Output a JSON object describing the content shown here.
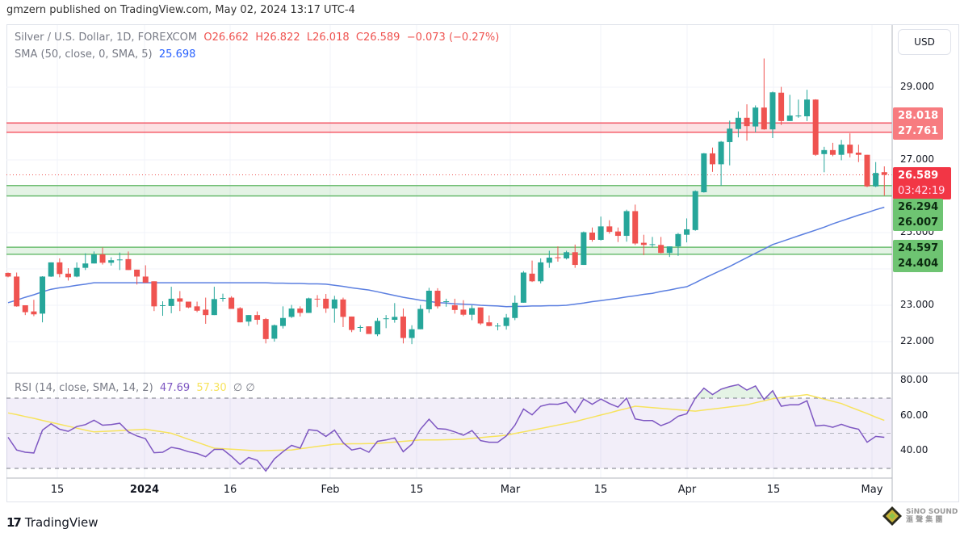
{
  "publisher": "gmzern published on TradingView.com, May 02, 2024 13:17 UTC-4",
  "legend": {
    "symbol": "Silver / U.S. Dollar, 1D, FOREXCOM",
    "open": "O26.662",
    "high": "H26.822",
    "low": "L26.018",
    "close": "C26.589",
    "change": "−0.073 (−0.27%)",
    "sma_title": "SMA (50, close, 0, SMA, 5)",
    "sma_value": "25.698",
    "rsi_title": "RSI (14, close, SMA, 14, 2)",
    "rsi_value": "47.69",
    "rsi_sma_value": "57.30",
    "rsi_extra": "∅ ∅"
  },
  "currency_button": "USD",
  "price_axis": {
    "ticks": [
      "29.000",
      "27.000",
      "25.000",
      "23.000",
      "22.000"
    ],
    "tags": {
      "resistance_top": "28.018",
      "resistance_bottom": "27.761",
      "last_price": "26.589",
      "countdown": "03:42:19",
      "support1_top": "26.294",
      "support1_bottom": "26.007",
      "support2_top": "24.597",
      "support2_bottom": "24.404"
    }
  },
  "rsi_axis": {
    "ticks": [
      "80.00",
      "60.00",
      "40.00"
    ]
  },
  "time_axis": {
    "ticks": [
      "15",
      "2024",
      "16",
      "Feb",
      "15",
      "Mar",
      "15",
      "Apr",
      "15",
      "May"
    ]
  },
  "footer": {
    "brand": "TradingView",
    "watermark": "SINO SOUND"
  },
  "colors": {
    "up": "#26a69a",
    "down": "#ef5350",
    "sma": "#5b7fe0",
    "rsi": "#7e57c2",
    "rsi_sma": "#f7e35d",
    "resistance_zone": "#f23645",
    "support_zone": "#4caf50"
  },
  "chart_data": {
    "type": "candlestick",
    "symbol": "Silver / U.S. Dollar",
    "interval": "1D",
    "ylim": [
      21.6,
      30.2
    ],
    "zones": [
      {
        "type": "resistance",
        "top": 28.018,
        "bottom": 27.761
      },
      {
        "type": "support",
        "top": 26.294,
        "bottom": 26.007
      },
      {
        "type": "support",
        "top": 24.597,
        "bottom": 24.404
      }
    ],
    "last_price": 26.589,
    "candles_ohlc": [
      [
        23.89,
        23.9,
        23.77,
        23.79
      ],
      [
        23.79,
        23.9,
        22.96,
        22.97
      ],
      [
        23.0,
        23.0,
        22.73,
        22.81
      ],
      [
        22.83,
        23.15,
        22.7,
        22.75
      ],
      [
        22.77,
        23.8,
        22.53,
        23.79
      ],
      [
        23.79,
        24.18,
        23.78,
        24.18
      ],
      [
        24.18,
        24.29,
        23.77,
        23.86
      ],
      [
        23.87,
        24.02,
        23.68,
        23.77
      ],
      [
        23.79,
        24.18,
        23.77,
        24.03
      ],
      [
        24.03,
        24.43,
        23.97,
        24.15
      ],
      [
        24.15,
        24.48,
        24.15,
        24.4
      ],
      [
        24.4,
        24.59,
        24.12,
        24.17
      ],
      [
        24.17,
        24.32,
        24.09,
        24.24
      ],
      [
        24.24,
        24.45,
        23.97,
        24.26
      ],
      [
        24.27,
        24.48,
        23.97,
        23.97
      ],
      [
        23.98,
        23.98,
        23.57,
        23.79
      ],
      [
        23.79,
        24.1,
        23.62,
        23.62
      ],
      [
        23.66,
        23.66,
        22.84,
        22.97
      ],
      [
        22.99,
        23.11,
        22.71,
        23.0
      ],
      [
        22.98,
        23.51,
        22.78,
        23.18
      ],
      [
        23.19,
        23.39,
        22.84,
        23.1
      ],
      [
        23.1,
        23.1,
        22.92,
        22.94
      ],
      [
        22.97,
        23.1,
        22.81,
        22.85
      ],
      [
        22.88,
        23.21,
        22.49,
        22.73
      ],
      [
        22.73,
        23.51,
        22.73,
        23.17
      ],
      [
        23.19,
        23.32,
        23.1,
        23.2
      ],
      [
        23.21,
        23.25,
        22.9,
        22.9
      ],
      [
        22.92,
        22.95,
        22.53,
        22.53
      ],
      [
        22.55,
        22.73,
        22.43,
        22.73
      ],
      [
        22.73,
        22.83,
        22.47,
        22.6
      ],
      [
        22.62,
        22.65,
        21.95,
        22.07
      ],
      [
        22.08,
        22.47,
        22.0,
        22.45
      ],
      [
        22.43,
        22.97,
        22.36,
        22.65
      ],
      [
        22.68,
        23.01,
        22.65,
        22.91
      ],
      [
        22.91,
        22.97,
        22.69,
        22.79
      ],
      [
        22.79,
        23.21,
        22.79,
        23.19
      ],
      [
        23.18,
        23.28,
        22.95,
        23.17
      ],
      [
        23.18,
        23.31,
        22.79,
        22.91
      ],
      [
        22.91,
        23.26,
        22.52,
        23.16
      ],
      [
        23.16,
        23.21,
        22.4,
        22.68
      ],
      [
        22.69,
        22.69,
        22.26,
        22.32
      ],
      [
        22.38,
        22.45,
        22.27,
        22.4
      ],
      [
        22.42,
        22.42,
        22.21,
        22.21
      ],
      [
        22.2,
        22.65,
        22.15,
        22.57
      ],
      [
        22.63,
        22.73,
        22.37,
        22.64
      ],
      [
        22.6,
        23.06,
        22.52,
        22.68
      ],
      [
        22.69,
        22.91,
        21.95,
        22.1
      ],
      [
        22.1,
        22.45,
        21.93,
        22.34
      ],
      [
        22.34,
        23.01,
        22.34,
        22.9
      ],
      [
        22.89,
        23.48,
        22.79,
        23.4
      ],
      [
        23.4,
        23.47,
        22.91,
        22.97
      ],
      [
        23.1,
        23.18,
        22.96,
        23.11
      ],
      [
        23.0,
        23.18,
        22.77,
        22.87
      ],
      [
        22.88,
        23.14,
        22.7,
        22.74
      ],
      [
        22.74,
        23.0,
        22.59,
        22.92
      ],
      [
        22.94,
        22.94,
        22.46,
        22.5
      ],
      [
        22.53,
        22.72,
        22.42,
        22.43
      ],
      [
        22.43,
        22.51,
        22.31,
        22.44
      ],
      [
        22.43,
        22.76,
        22.33,
        22.66
      ],
      [
        22.65,
        23.27,
        22.59,
        23.07
      ],
      [
        23.07,
        23.94,
        23.07,
        23.9
      ],
      [
        23.87,
        24.23,
        23.64,
        23.66
      ],
      [
        23.66,
        24.29,
        23.6,
        24.18
      ],
      [
        24.17,
        24.5,
        24.03,
        24.31
      ],
      [
        24.32,
        24.62,
        24.2,
        24.3
      ],
      [
        24.29,
        24.5,
        24.26,
        24.46
      ],
      [
        24.46,
        24.67,
        24.03,
        24.11
      ],
      [
        24.11,
        25.03,
        24.11,
        25.01
      ],
      [
        25.0,
        25.14,
        24.75,
        24.8
      ],
      [
        24.8,
        25.44,
        24.78,
        25.17
      ],
      [
        25.17,
        25.34,
        24.97,
        25.02
      ],
      [
        25.03,
        25.14,
        24.74,
        24.91
      ],
      [
        24.91,
        25.63,
        24.75,
        25.59
      ],
      [
        25.59,
        25.77,
        24.66,
        24.7
      ],
      [
        24.72,
        24.94,
        24.38,
        24.66
      ],
      [
        24.67,
        24.88,
        24.59,
        24.68
      ],
      [
        24.66,
        24.88,
        24.43,
        24.44
      ],
      [
        24.44,
        24.62,
        24.33,
        24.62
      ],
      [
        24.62,
        24.99,
        24.36,
        24.96
      ],
      [
        24.94,
        25.39,
        24.73,
        25.09
      ],
      [
        25.07,
        26.16,
        25.05,
        26.14
      ],
      [
        26.11,
        27.19,
        26.1,
        27.18
      ],
      [
        27.18,
        27.34,
        26.67,
        26.88
      ],
      [
        26.88,
        27.52,
        26.29,
        27.5
      ],
      [
        27.49,
        28.08,
        26.85,
        27.86
      ],
      [
        27.85,
        28.33,
        27.62,
        28.16
      ],
      [
        28.16,
        28.53,
        27.53,
        27.93
      ],
      [
        27.92,
        28.5,
        27.76,
        28.44
      ],
      [
        28.44,
        29.79,
        27.83,
        27.84
      ],
      [
        27.84,
        28.88,
        27.6,
        28.86
      ],
      [
        28.85,
        29.01,
        27.96,
        28.07
      ],
      [
        28.07,
        28.79,
        28.07,
        28.22
      ],
      [
        28.2,
        28.66,
        28.16,
        28.22
      ],
      [
        28.2,
        28.93,
        28.07,
        28.66
      ],
      [
        28.66,
        28.67,
        27.11,
        27.14
      ],
      [
        27.16,
        27.36,
        26.66,
        27.27
      ],
      [
        27.27,
        27.47,
        27.1,
        27.14
      ],
      [
        27.14,
        27.55,
        26.99,
        27.42
      ],
      [
        27.42,
        27.73,
        27.07,
        27.18
      ],
      [
        27.2,
        27.42,
        26.94,
        27.14
      ],
      [
        27.14,
        27.14,
        26.25,
        26.27
      ],
      [
        26.27,
        26.94,
        26.25,
        26.64
      ],
      [
        26.662,
        26.822,
        26.018,
        26.589
      ]
    ],
    "sma50": [
      23.07,
      23.14,
      23.22,
      23.29,
      23.37,
      23.44,
      23.48,
      23.51,
      23.55,
      23.58,
      23.62,
      23.62,
      23.62,
      23.62,
      23.62,
      23.62,
      23.62,
      23.62,
      23.62,
      23.62,
      23.62,
      23.62,
      23.62,
      23.62,
      23.62,
      23.62,
      23.62,
      23.62,
      23.62,
      23.62,
      23.62,
      23.61,
      23.61,
      23.6,
      23.6,
      23.59,
      23.59,
      23.58,
      23.55,
      23.52,
      23.48,
      23.45,
      23.42,
      23.37,
      23.32,
      23.27,
      23.22,
      23.18,
      23.14,
      23.11,
      23.07,
      23.06,
      23.04,
      23.03,
      23.02,
      23.0,
      22.99,
      22.98,
      22.96,
      22.97,
      22.97,
      22.98,
      22.98,
      22.99,
      22.99,
      23.0,
      23.03,
      23.06,
      23.1,
      23.13,
      23.16,
      23.19,
      23.23,
      23.26,
      23.3,
      23.33,
      23.38,
      23.42,
      23.47,
      23.51,
      23.62,
      23.74,
      23.85,
      23.96,
      24.07,
      24.19,
      24.31,
      24.43,
      24.55,
      24.67,
      24.75,
      24.83,
      24.91,
      24.99,
      25.07,
      25.15,
      25.24,
      25.32,
      25.4,
      25.48,
      25.55,
      25.63,
      25.698
    ],
    "rsi": {
      "ylim": [
        20,
        85
      ],
      "levels": [
        70,
        50,
        30
      ],
      "values": [
        47.7,
        40.5,
        39.2,
        38.8,
        51.8,
        55.4,
        52.3,
        51.1,
        53.8,
        54.9,
        57.4,
        54.6,
        54.9,
        55.7,
        50.8,
        48.5,
        46.9,
        38.9,
        39.2,
        42.0,
        41.1,
        39.5,
        38.5,
        36.6,
        40.8,
        40.8,
        36.9,
        32.3,
        36.2,
        34.6,
        28.5,
        35.4,
        39.5,
        43.1,
        41.5,
        52.0,
        51.5,
        48.2,
        51.8,
        44.6,
        40.5,
        41.5,
        39.2,
        45.4,
        46.2,
        47.4,
        39.5,
        43.8,
        52.3,
        58.0,
        52.6,
        52.3,
        50.8,
        48.9,
        51.5,
        45.8,
        44.9,
        44.9,
        48.5,
        54.6,
        63.8,
        60.5,
        65.4,
        66.6,
        66.5,
        67.7,
        61.8,
        69.5,
        66.5,
        69.5,
        66.9,
        64.9,
        70.0,
        58.2,
        57.2,
        57.2,
        54.3,
        56.2,
        59.7,
        61.1,
        70.0,
        75.7,
        72.0,
        75.1,
        76.6,
        77.7,
        74.6,
        76.9,
        69.2,
        74.2,
        65.4,
        66.2,
        66.2,
        68.5,
        54.2,
        54.6,
        53.4,
        55.1,
        53.4,
        52.3,
        44.9,
        48.2,
        47.69
      ],
      "sma": [
        61.6,
        60.6,
        59.5,
        58.5,
        57.3,
        56.2,
        55.1,
        54.0,
        52.9,
        51.8,
        50.8,
        51.0,
        51.3,
        51.5,
        51.8,
        52.0,
        52.3,
        51.5,
        50.8,
        50.0,
        48.3,
        46.6,
        44.9,
        43.2,
        41.5,
        41.2,
        40.9,
        40.6,
        40.3,
        40.0,
        40.1,
        40.3,
        40.4,
        40.5,
        41.2,
        41.8,
        42.5,
        43.1,
        43.8,
        43.9,
        44.0,
        44.0,
        44.1,
        44.2,
        44.6,
        45.0,
        45.4,
        45.8,
        46.2,
        46.2,
        46.2,
        46.3,
        46.4,
        46.6,
        47.1,
        47.5,
        48.0,
        48.4,
        48.9,
        49.9,
        50.8,
        51.8,
        52.7,
        53.7,
        54.7,
        55.6,
        56.6,
        57.9,
        59.1,
        60.4,
        61.6,
        62.9,
        64.1,
        65.4,
        65.0,
        64.6,
        64.2,
        63.8,
        63.4,
        63.0,
        62.6,
        63.2,
        63.8,
        64.4,
        65.0,
        65.6,
        66.2,
        67.4,
        68.5,
        69.7,
        70.3,
        70.9,
        71.4,
        72.0,
        70.7,
        69.4,
        68.2,
        66.9,
        65.0,
        63.1,
        61.2,
        59.2,
        57.3
      ]
    }
  }
}
